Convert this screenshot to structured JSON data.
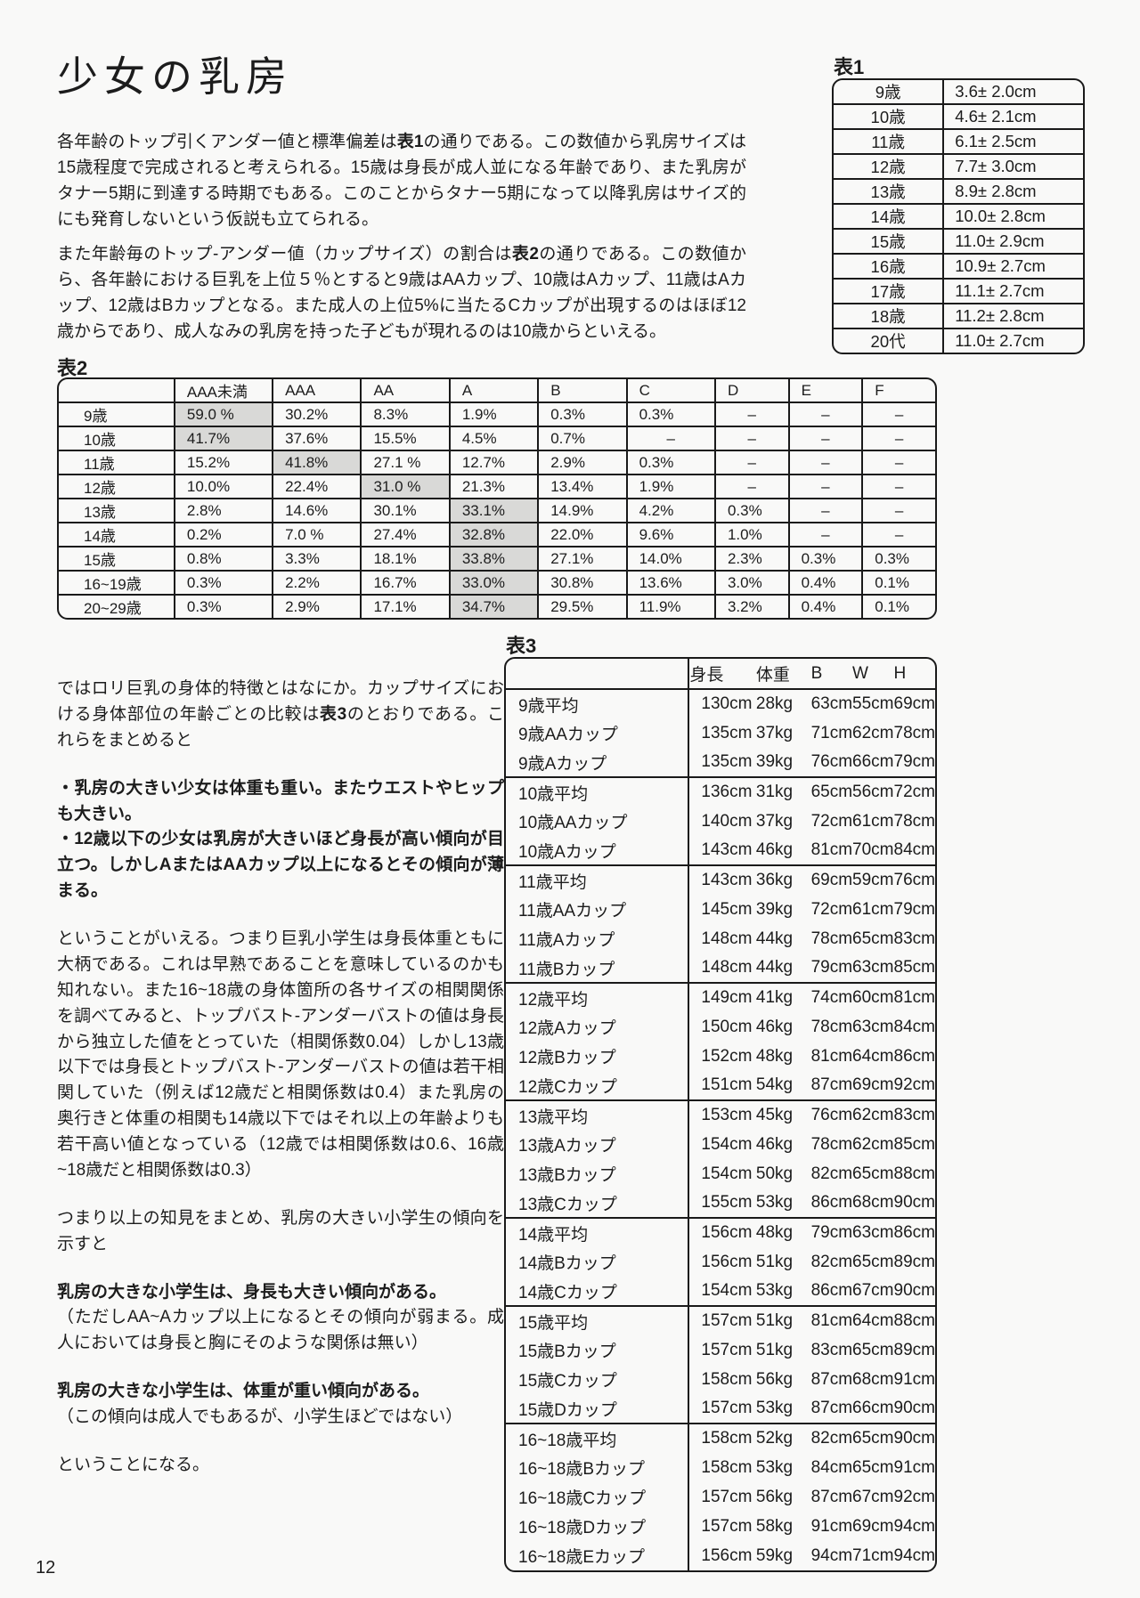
{
  "page": {
    "title": "少女の乳房",
    "number": "12"
  },
  "intro": {
    "p1": [
      {
        "t": "各年齢のトップ引くアンダー値と標準偏差は"
      },
      {
        "t": "表1",
        "b": true
      },
      {
        "t": "の通りである。この数値から乳房サイズは15歳程度で完成されると考えられる。15歳は身長が成人並になる年齢であり、また乳房がタナー5期に到達する時期でもある。このことからタナー5期になって以降乳房はサイズ的にも発育しないという仮説も立てられる。"
      }
    ],
    "p2": [
      {
        "t": "また年齢毎のトップ-アンダー値（カップサイズ）の割合は"
      },
      {
        "t": "表2",
        "b": true
      },
      {
        "t": "の通りである。この数値から、各年齢における巨乳を上位５％とすると9歳はAAカップ、10歳はAカップ、11歳はAカップ、12歳はBカップとなる。また成人の上位5%に当たるCカップが出現するのはほぼ12歳からであり、成人なみの乳房を持った子どもが現れるのは10歳からといえる。"
      }
    ]
  },
  "table1": {
    "label": "表1",
    "rows": [
      {
        "age": "9歳",
        "value": "3.6± 2.0cm"
      },
      {
        "age": "10歳",
        "value": "4.6± 2.1cm"
      },
      {
        "age": "11歳",
        "value": "6.1± 2.5cm"
      },
      {
        "age": "12歳",
        "value": "7.7± 3.0cm"
      },
      {
        "age": "13歳",
        "value": "8.9± 2.8cm"
      },
      {
        "age": "14歳",
        "value": "10.0± 2.8cm"
      },
      {
        "age": "15歳",
        "value": "11.0± 2.9cm"
      },
      {
        "age": "16歳",
        "value": "10.9± 2.7cm"
      },
      {
        "age": "17歳",
        "value": "11.1± 2.7cm"
      },
      {
        "age": "18歳",
        "value": "11.2± 2.8cm"
      },
      {
        "age": "20代",
        "value": "11.0± 2.7cm"
      }
    ]
  },
  "table2": {
    "label": "表2",
    "headers": [
      "",
      "AAA未満",
      "AAA",
      "AA",
      "A",
      "B",
      "C",
      "D",
      "E",
      "F"
    ],
    "rows": [
      {
        "label": "9歳",
        "highlight": 0,
        "cells": [
          "59.0 %",
          "30.2%",
          "8.3%",
          "1.9%",
          "0.3%",
          "0.3%",
          "–",
          "–",
          "–"
        ]
      },
      {
        "label": "10歳",
        "highlight": 0,
        "cells": [
          "41.7%",
          "37.6%",
          "15.5%",
          "4.5%",
          "0.7%",
          "–",
          "–",
          "–",
          "–"
        ]
      },
      {
        "label": "11歳",
        "highlight": 1,
        "cells": [
          "15.2%",
          "41.8%",
          "27.1 %",
          "12.7%",
          "2.9%",
          "0.3%",
          "–",
          "–",
          "–"
        ]
      },
      {
        "label": "12歳",
        "highlight": 2,
        "cells": [
          "10.0%",
          "22.4%",
          "31.0 %",
          "21.3%",
          "13.4%",
          "1.9%",
          "–",
          "–",
          "–"
        ]
      },
      {
        "label": "13歳",
        "highlight": 3,
        "cells": [
          "2.8%",
          "14.6%",
          "30.1%",
          "33.1%",
          "14.9%",
          "4.2%",
          "0.3%",
          "–",
          "–"
        ]
      },
      {
        "label": "14歳",
        "highlight": 3,
        "cells": [
          "0.2%",
          "7.0 %",
          "27.4%",
          "32.8%",
          "22.0%",
          "9.6%",
          "1.0%",
          "–",
          "–"
        ]
      },
      {
        "label": "15歳",
        "highlight": 3,
        "cells": [
          "0.8%",
          "3.3%",
          "18.1%",
          "33.8%",
          "27.1%",
          "14.0%",
          "2.3%",
          "0.3%",
          "0.3%"
        ]
      },
      {
        "label": "16~19歳",
        "highlight": 3,
        "cells": [
          "0.3%",
          "2.2%",
          "16.7%",
          "33.0%",
          "30.8%",
          "13.6%",
          "3.0%",
          "0.4%",
          "0.1%"
        ]
      },
      {
        "label": "20~29歳",
        "highlight": 3,
        "cells": [
          "0.3%",
          "2.9%",
          "17.1%",
          "34.7%",
          "29.5%",
          "11.9%",
          "3.2%",
          "0.4%",
          "0.1%"
        ]
      }
    ]
  },
  "body": {
    "p3": [
      {
        "t": "ではロリ巨乳の身体的特徴とはなにか。カップサイズにおける身体部位の年齢ごとの比較は"
      },
      {
        "t": "表3",
        "b": true
      },
      {
        "t": "のとおりである。これらをまとめると"
      }
    ],
    "bullet1": "・乳房の大きい少女は体重も重い。またウエストやヒップも大きい。",
    "bullet2": "・12歳以下の少女は乳房が大きいほど身長が高い傾向が目立つ。しかしAまたはAAカップ以上になるとその傾向が薄まる。",
    "p4": "ということがいえる。つまり巨乳小学生は身長体重ともに大柄である。これは早熟であることを意味しているのかも知れない。また16~18歳の身体箇所の各サイズの相関関係を調べてみると、トップバスト-アンダーバストの値は身長から独立した値をとっていた（相関係数0.04）しかし13歳以下では身長とトップバスト-アンダーバストの値は若干相関していた（例えば12歳だと相関係数は0.4）また乳房の奥行きと体重の相関も14歳以下ではそれ以上の年齢よりも若干高い値となっている（12歳では相関係数は0.6、16歳~18歳だと相関係数は0.3）",
    "p5": "つまり以上の知見をまとめ、乳房の大きい小学生の傾向を示すと",
    "h1": "乳房の大きな小学生は、身長も大きい傾向がある。",
    "h1_note": "（ただしAA~Aカップ以上になるとその傾向が弱まる。成人においては身長と胸にそのような関係は無い）",
    "h2": "乳房の大きな小学生は、体重が重い傾向がある。",
    "h2_note": "（この傾向は成人でもあるが、小学生ほどではない）",
    "p8": "ということになる。"
  },
  "table3": {
    "label": "表3",
    "headers": [
      "",
      "身長",
      "体重",
      "B",
      "W",
      "H"
    ],
    "groups": [
      {
        "rows": [
          {
            "label": "9歳平均",
            "cells": [
              "130cm",
              "28kg",
              "63cm",
              "55cm",
              "69cm"
            ]
          },
          {
            "label": "9歳AAカップ",
            "cells": [
              "135cm",
              "37kg",
              "71cm",
              "62cm",
              "78cm"
            ]
          },
          {
            "label": "9歳Aカップ",
            "cells": [
              "135cm",
              "39kg",
              "76cm",
              "66cm",
              "79cm"
            ]
          }
        ]
      },
      {
        "rows": [
          {
            "label": "10歳平均",
            "cells": [
              "136cm",
              "31kg",
              "65cm",
              "56cm",
              "72cm"
            ]
          },
          {
            "label": "10歳AAカップ",
            "cells": [
              "140cm",
              "37kg",
              "72cm",
              "61cm",
              "78cm"
            ]
          },
          {
            "label": "10歳Aカップ",
            "cells": [
              "143cm",
              "46kg",
              "81cm",
              "70cm",
              "84cm"
            ]
          }
        ]
      },
      {
        "rows": [
          {
            "label": "11歳平均",
            "cells": [
              "143cm",
              "36kg",
              "69cm",
              "59cm",
              "76cm"
            ]
          },
          {
            "label": "11歳AAカップ",
            "cells": [
              "145cm",
              "39kg",
              "72cm",
              "61cm",
              "79cm"
            ]
          },
          {
            "label": "11歳Aカップ",
            "cells": [
              "148cm",
              "44kg",
              "78cm",
              "65cm",
              "83cm"
            ]
          },
          {
            "label": "11歳Bカップ",
            "cells": [
              "148cm",
              "44kg",
              "79cm",
              "63cm",
              "85cm"
            ]
          }
        ]
      },
      {
        "rows": [
          {
            "label": "12歳平均",
            "cells": [
              "149cm",
              "41kg",
              "74cm",
              "60cm",
              "81cm"
            ]
          },
          {
            "label": "12歳Aカップ",
            "cells": [
              "150cm",
              "46kg",
              "78cm",
              "63cm",
              "84cm"
            ]
          },
          {
            "label": "12歳Bカップ",
            "cells": [
              "152cm",
              "48kg",
              "81cm",
              "64cm",
              "86cm"
            ]
          },
          {
            "label": "12歳Cカップ",
            "cells": [
              "151cm",
              "54kg",
              "87cm",
              "69cm",
              "92cm"
            ]
          }
        ]
      },
      {
        "rows": [
          {
            "label": "13歳平均",
            "cells": [
              "153cm",
              "45kg",
              "76cm",
              "62cm",
              "83cm"
            ]
          },
          {
            "label": "13歳Aカップ",
            "cells": [
              "154cm",
              "46kg",
              "78cm",
              "62cm",
              "85cm"
            ]
          },
          {
            "label": "13歳Bカップ",
            "cells": [
              "154cm",
              "50kg",
              "82cm",
              "65cm",
              "88cm"
            ]
          },
          {
            "label": "13歳Cカップ",
            "cells": [
              "155cm",
              "53kg",
              "86cm",
              "68cm",
              "90cm"
            ]
          }
        ]
      },
      {
        "rows": [
          {
            "label": "14歳平均",
            "cells": [
              "156cm",
              "48kg",
              "79cm",
              "63cm",
              "86cm"
            ]
          },
          {
            "label": "14歳Bカップ",
            "cells": [
              "156cm",
              "51kg",
              "82cm",
              "65cm",
              "89cm"
            ]
          },
          {
            "label": "14歳Cカップ",
            "cells": [
              "154cm",
              "53kg",
              "86cm",
              "67cm",
              "90cm"
            ]
          }
        ]
      },
      {
        "rows": [
          {
            "label": "15歳平均",
            "cells": [
              "157cm",
              "51kg",
              "81cm",
              "64cm",
              "88cm"
            ]
          },
          {
            "label": "15歳Bカップ",
            "cells": [
              "157cm",
              "51kg",
              "83cm",
              "65cm",
              "89cm"
            ]
          },
          {
            "label": "15歳Cカップ",
            "cells": [
              "158cm",
              "56kg",
              "87cm",
              "68cm",
              "91cm"
            ]
          },
          {
            "label": "15歳Dカップ",
            "cells": [
              "157cm",
              "53kg",
              "87cm",
              "66cm",
              "90cm"
            ]
          }
        ]
      },
      {
        "rows": [
          {
            "label": "16~18歳平均",
            "cells": [
              "158cm",
              "52kg",
              "82cm",
              "65cm",
              "90cm"
            ]
          },
          {
            "label": "16~18歳Bカップ",
            "cells": [
              "158cm",
              "53kg",
              "84cm",
              "65cm",
              "91cm"
            ]
          },
          {
            "label": "16~18歳Cカップ",
            "cells": [
              "157cm",
              "56kg",
              "87cm",
              "67cm",
              "92cm"
            ]
          },
          {
            "label": "16~18歳Dカップ",
            "cells": [
              "157cm",
              "58kg",
              "91cm",
              "69cm",
              "94cm"
            ]
          },
          {
            "label": "16~18歳Eカップ",
            "cells": [
              "156cm",
              "59kg",
              "94cm",
              "71cm",
              "94cm"
            ]
          }
        ]
      }
    ]
  }
}
